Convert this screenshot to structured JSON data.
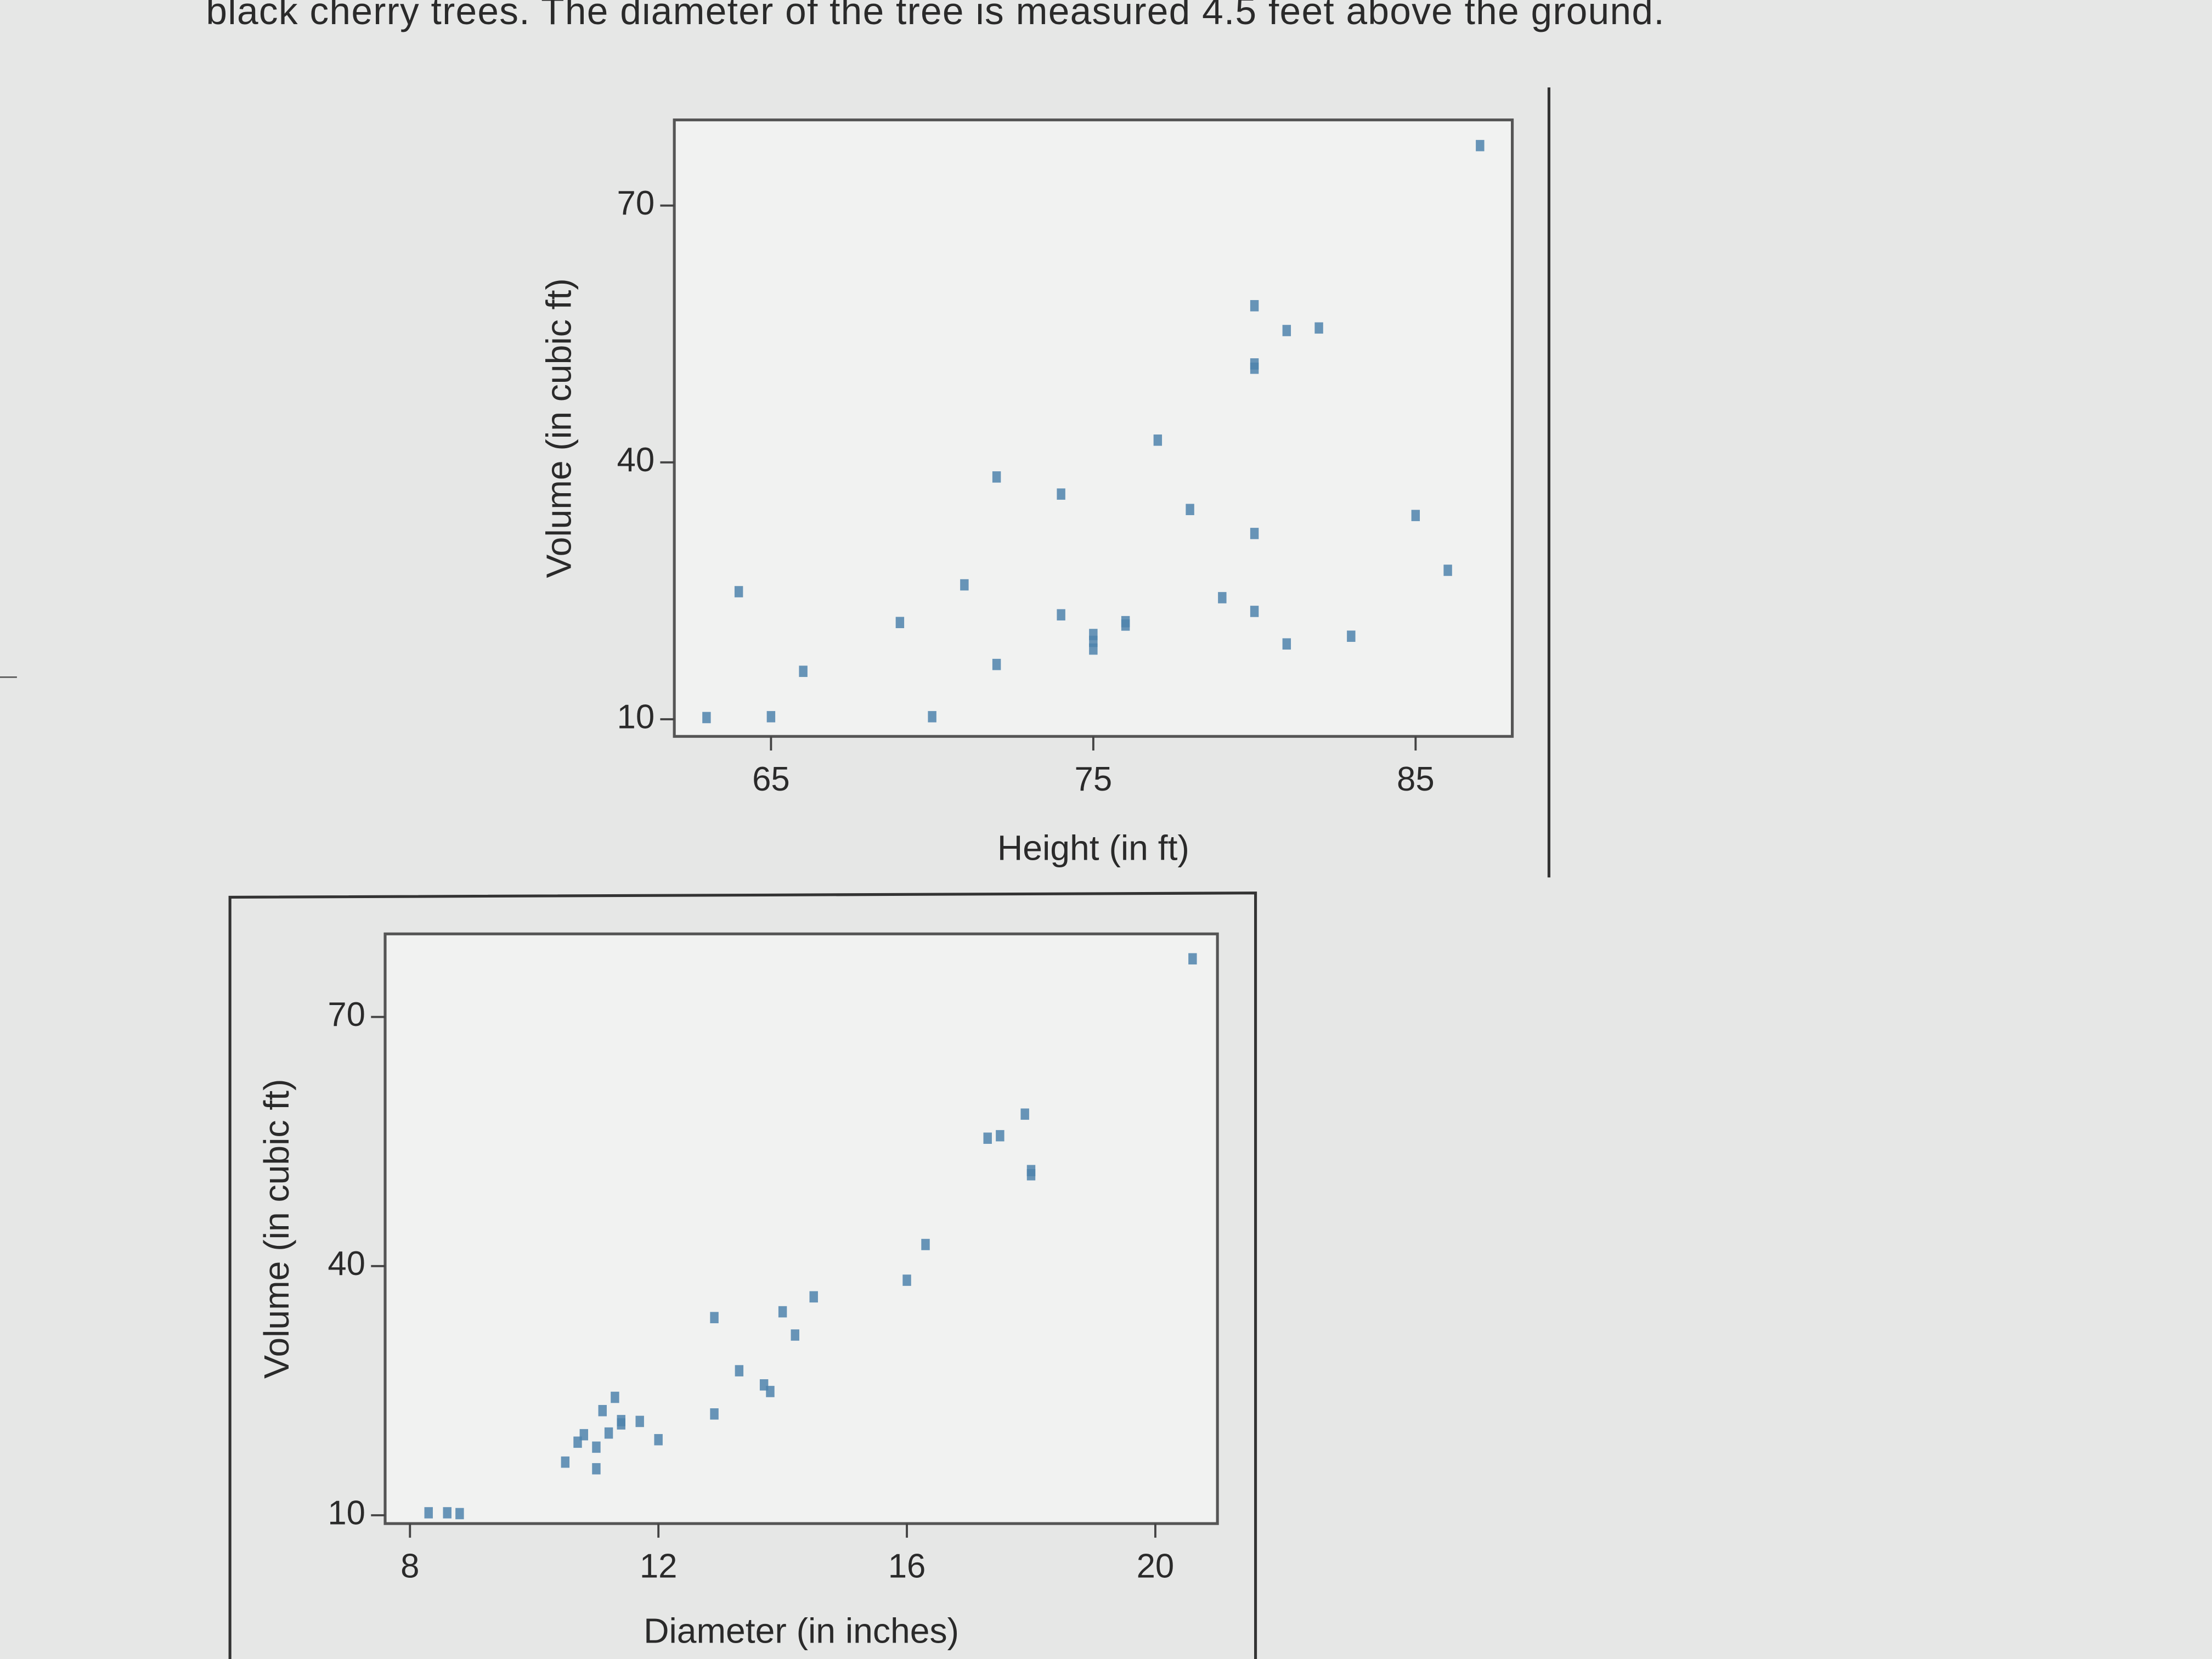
{
  "caption": "black cherry trees. The diameter of the tree is measured 4.5 feet above the ground.",
  "chart_data": [
    {
      "type": "scatter",
      "xlabel": "Height (in ft)",
      "ylabel": "Volume (in cubic ft)",
      "color": "#4f84ad",
      "x": [
        70,
        65,
        63,
        72,
        81,
        83,
        66,
        75,
        80,
        75,
        79,
        76,
        76,
        69,
        75,
        74,
        85,
        86,
        71,
        64,
        78,
        80,
        74,
        72,
        77,
        81,
        82,
        80,
        80,
        80,
        87
      ],
      "values": [
        10.3,
        10.3,
        10.2,
        16.4,
        18.8,
        19.7,
        15.6,
        18.2,
        22.6,
        19.9,
        24.2,
        21.0,
        21.4,
        21.3,
        19.1,
        22.2,
        33.8,
        27.4,
        25.7,
        24.9,
        34.5,
        31.7,
        36.3,
        38.3,
        42.6,
        55.4,
        55.7,
        58.3,
        51.5,
        51.0,
        77.0
      ],
      "xlim": [
        62,
        88
      ],
      "ylim": [
        8,
        80
      ],
      "xticks": [
        65,
        75,
        85
      ],
      "yticks": [
        10,
        40,
        70
      ]
    },
    {
      "type": "scatter",
      "xlabel": "Diameter (in inches)",
      "ylabel": "Volume (in cubic ft)",
      "color": "#4f84ad",
      "x": [
        8.3,
        8.6,
        8.8,
        10.5,
        10.7,
        10.8,
        11.0,
        11.0,
        11.1,
        11.2,
        11.3,
        11.4,
        11.4,
        11.7,
        12.0,
        12.9,
        12.9,
        13.3,
        13.7,
        13.8,
        14.0,
        14.2,
        14.5,
        16.0,
        16.3,
        17.3,
        17.5,
        17.9,
        18.0,
        18.0,
        20.6
      ],
      "values": [
        10.3,
        10.3,
        10.2,
        16.4,
        18.8,
        19.7,
        15.6,
        18.2,
        22.6,
        19.9,
        24.2,
        21.0,
        21.4,
        21.3,
        19.1,
        22.2,
        33.8,
        27.4,
        25.7,
        24.9,
        34.5,
        31.7,
        36.3,
        38.3,
        42.6,
        55.4,
        55.7,
        58.3,
        51.5,
        51.0,
        77.0
      ],
      "xlim": [
        7.6,
        21
      ],
      "ylim": [
        9,
        80
      ],
      "xticks": [
        8,
        12,
        16,
        20
      ],
      "yticks": [
        10,
        40,
        70
      ]
    }
  ]
}
